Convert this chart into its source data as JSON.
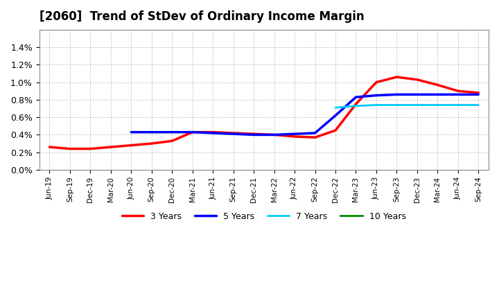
{
  "title": "[2060]  Trend of StDev of Ordinary Income Margin",
  "ylim": [
    0.0,
    0.016
  ],
  "yticks": [
    0.0,
    0.002,
    0.004,
    0.006,
    0.008,
    0.01,
    0.012,
    0.014
  ],
  "ytick_labels": [
    "0.0%",
    "0.2%",
    "0.4%",
    "0.6%",
    "0.8%",
    "1.0%",
    "1.2%",
    "1.4%"
  ],
  "background_color": "#ffffff",
  "grid_color": "#aaaaaa",
  "xtick_labels": [
    "Jun-19",
    "Sep-19",
    "Dec-19",
    "Mar-20",
    "Jun-20",
    "Sep-20",
    "Dec-20",
    "Mar-21",
    "Jun-21",
    "Sep-21",
    "Dec-21",
    "Mar-22",
    "Jun-22",
    "Sep-22",
    "Dec-22",
    "Mar-23",
    "Jun-23",
    "Sep-23",
    "Dec-23",
    "Mar-24",
    "Jun-24",
    "Sep-24"
  ],
  "series": {
    "3 Years": {
      "color": "#ff0000",
      "linewidth": 2.5,
      "x": [
        0,
        1,
        2,
        3,
        4,
        5,
        6,
        7,
        8,
        9,
        10,
        11,
        12,
        13,
        14,
        15,
        16,
        17,
        18,
        19,
        20,
        21
      ],
      "y": [
        0.0026,
        0.0024,
        0.0024,
        0.0026,
        0.0028,
        0.003,
        0.0033,
        0.0043,
        0.0043,
        0.0042,
        0.0041,
        0.004,
        0.0038,
        0.0037,
        0.0045,
        0.0075,
        0.01,
        0.0106,
        0.0103,
        0.0097,
        0.009,
        0.0088
      ]
    },
    "5 Years": {
      "color": "#0000ff",
      "linewidth": 2.5,
      "x": [
        4,
        5,
        6,
        7,
        8,
        9,
        10,
        11,
        12,
        13,
        14,
        15,
        16,
        17,
        18,
        19,
        20,
        21
      ],
      "y": [
        0.0043,
        0.0043,
        0.0043,
        0.0043,
        0.0042,
        0.0041,
        0.004,
        0.004,
        0.0041,
        0.0042,
        0.0062,
        0.0083,
        0.0085,
        0.0086,
        0.0086,
        0.0086,
        0.0086,
        0.0086
      ]
    },
    "7 Years": {
      "color": "#00ccff",
      "linewidth": 2.0,
      "x": [
        14,
        15,
        16,
        17,
        18,
        19,
        20,
        21
      ],
      "y": [
        0.0071,
        0.0073,
        0.0074,
        0.0074,
        0.0074,
        0.0074,
        0.0074,
        0.0074
      ]
    },
    "10 Years": {
      "color": "#008800",
      "linewidth": 2.0,
      "x": [],
      "y": []
    }
  },
  "legend_order": [
    "3 Years",
    "5 Years",
    "7 Years",
    "10 Years"
  ]
}
